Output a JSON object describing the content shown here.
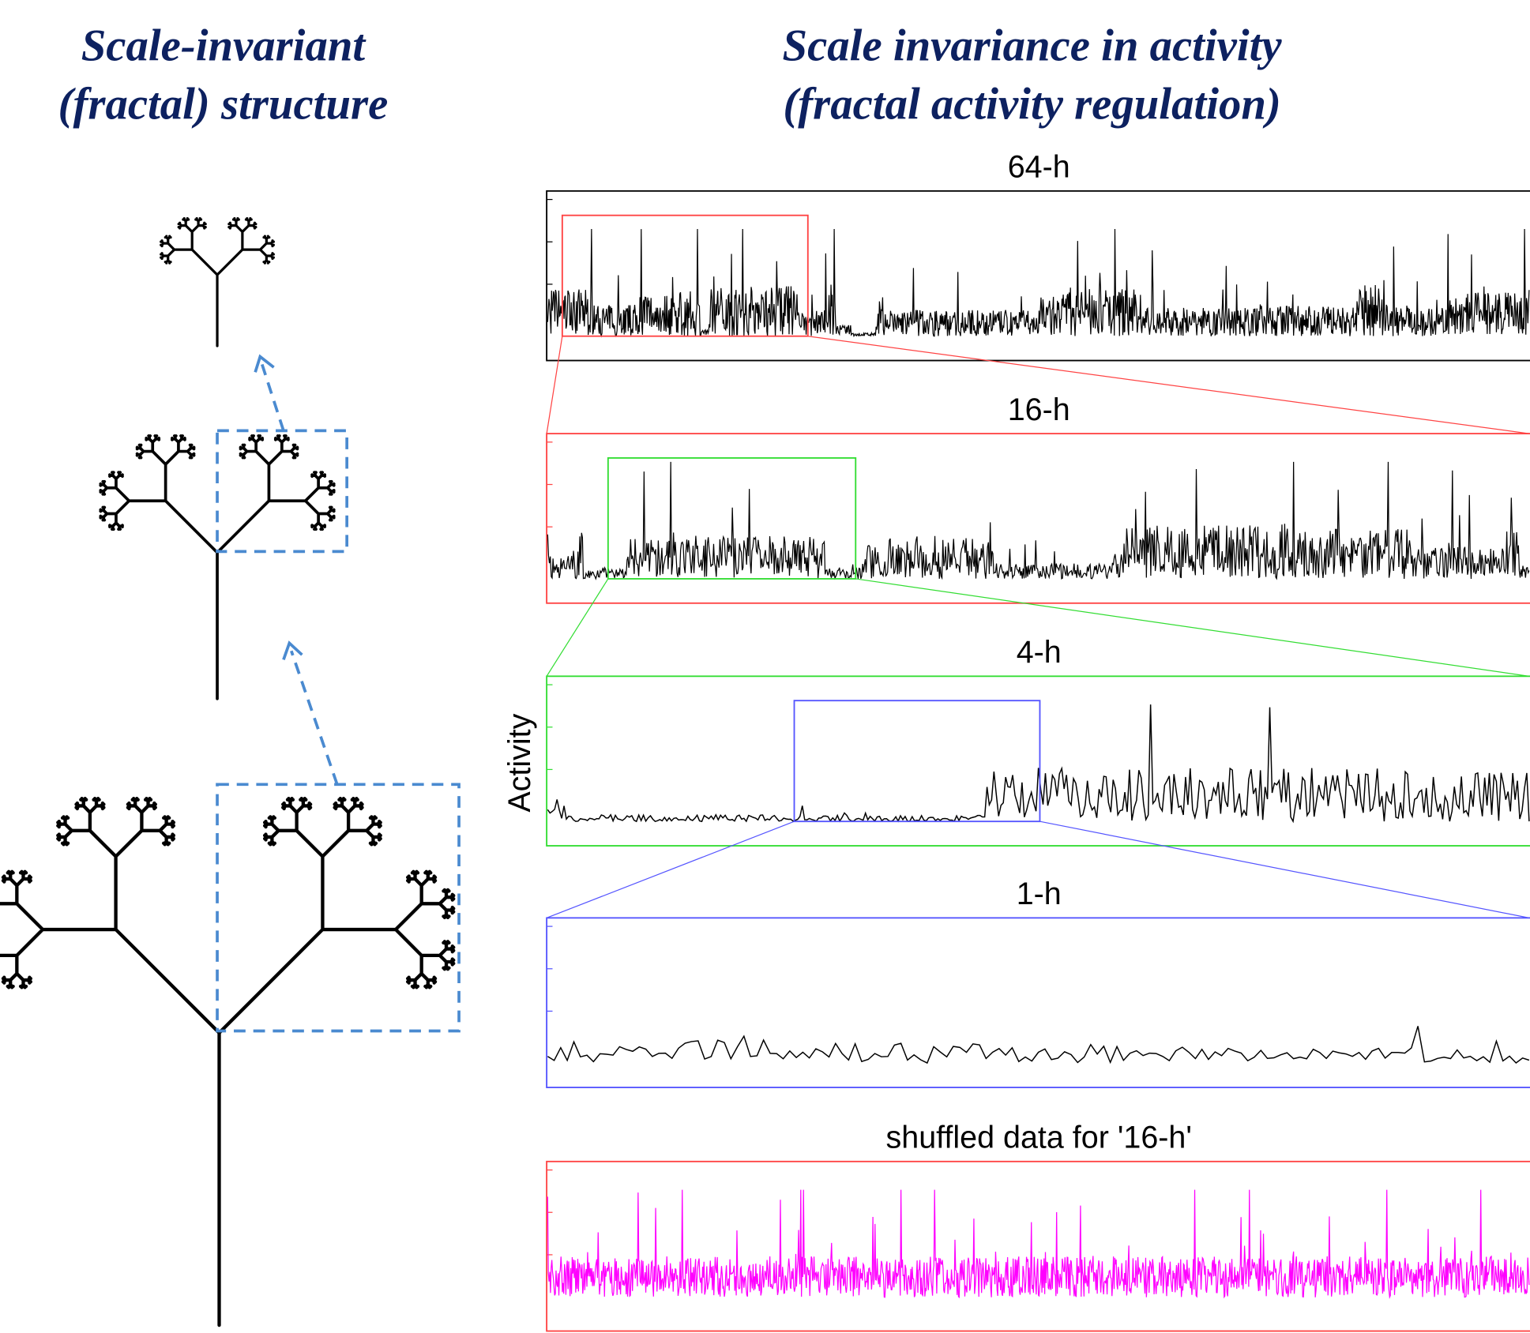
{
  "left_title": {
    "line1": "Scale-invariant",
    "line2": "(fractal) structure"
  },
  "right_title": {
    "line1": "Scale invariance in activity",
    "line2": "(fractal activity regulation)"
  },
  "y_axis_label": "Activity",
  "panels": [
    {
      "title": "64-h"
    },
    {
      "title": "16-h"
    },
    {
      "title": "4-h"
    },
    {
      "title": "1-h"
    },
    {
      "title": "shuffled data for '16-h'"
    }
  ]
}
